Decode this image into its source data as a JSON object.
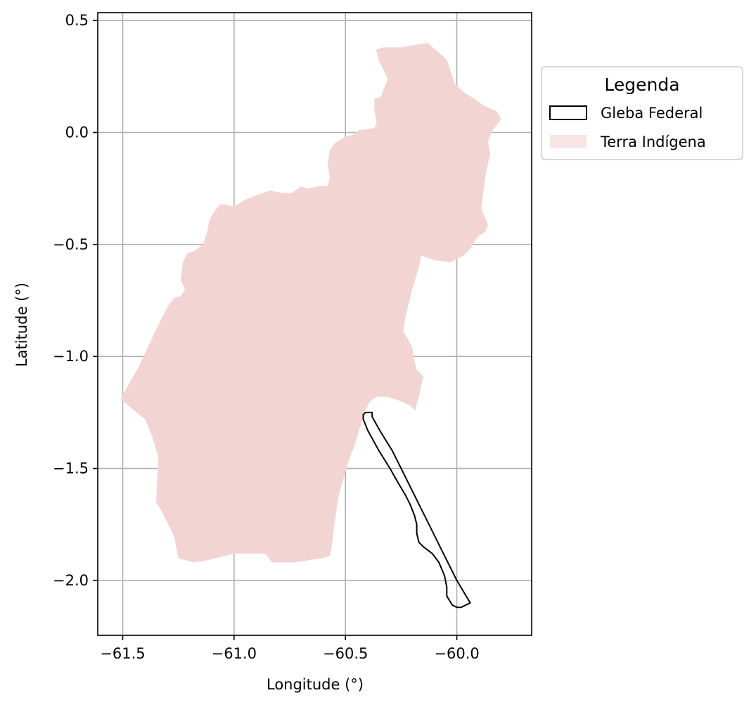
{
  "chart_data": {
    "type": "map",
    "xlabel": "Longitude (°)",
    "ylabel": "Latitude (°)",
    "xlim": [
      -61.612,
      -59.664
    ],
    "ylim": [
      -2.245,
      0.535
    ],
    "x_ticks": [
      -61.5,
      -61.0,
      -60.5,
      -60.0
    ],
    "x_tick_labels": [
      "−61.5",
      "−61.0",
      "−60.5",
      "−60.0"
    ],
    "y_ticks": [
      0.5,
      0.0,
      -0.5,
      -1.0,
      -1.5,
      -2.0
    ],
    "y_tick_labels": [
      "0.5",
      "0.0",
      "−0.5",
      "−1.0",
      "−1.5",
      "−2.0"
    ],
    "grid": true,
    "legend": {
      "title": "Legenda",
      "placement": "outside-right-top",
      "entries": [
        {
          "label": "Gleba Federal",
          "style": "outline",
          "color": "#000000"
        },
        {
          "label": "Terra Indígena",
          "style": "fill",
          "color": "#f2d4d3"
        }
      ]
    },
    "layers": [
      {
        "name": "Terra Indígena",
        "color": "#f2d4d3",
        "polygon": [
          [
            -60.362,
            0.37
          ],
          [
            -60.33,
            0.38
          ],
          [
            -60.25,
            0.38
          ],
          [
            -60.13,
            0.4
          ],
          [
            -60.045,
            0.325
          ],
          [
            -60.03,
            0.28
          ],
          [
            -60.01,
            0.22
          ],
          [
            -59.97,
            0.18
          ],
          [
            -59.92,
            0.15
          ],
          [
            -59.88,
            0.12
          ],
          [
            -59.822,
            0.095
          ],
          [
            -59.8,
            0.06
          ],
          [
            -59.84,
            0.01
          ],
          [
            -59.86,
            -0.04
          ],
          [
            -59.85,
            -0.1
          ],
          [
            -59.87,
            -0.18
          ],
          [
            -59.88,
            -0.26
          ],
          [
            -59.89,
            -0.34
          ],
          [
            -59.86,
            -0.41
          ],
          [
            -59.87,
            -0.44
          ],
          [
            -59.91,
            -0.47
          ],
          [
            -59.94,
            -0.52
          ],
          [
            -59.97,
            -0.55
          ],
          [
            -60.03,
            -0.58
          ],
          [
            -60.1,
            -0.57
          ],
          [
            -60.16,
            -0.55
          ],
          [
            -60.17,
            -0.6
          ],
          [
            -60.2,
            -0.7
          ],
          [
            -60.23,
            -0.82
          ],
          [
            -60.24,
            -0.89
          ],
          [
            -60.22,
            -0.92
          ],
          [
            -60.2,
            -0.96
          ],
          [
            -60.19,
            -1.02
          ],
          [
            -60.18,
            -1.06
          ],
          [
            -60.15,
            -1.09
          ],
          [
            -60.16,
            -1.13
          ],
          [
            -60.17,
            -1.18
          ],
          [
            -60.18,
            -1.21
          ],
          [
            -60.186,
            -1.242
          ],
          [
            -60.21,
            -1.22
          ],
          [
            -60.25,
            -1.2
          ],
          [
            -60.31,
            -1.18
          ],
          [
            -60.36,
            -1.18
          ],
          [
            -60.39,
            -1.2
          ],
          [
            -60.41,
            -1.24
          ],
          [
            -60.42,
            -1.27
          ],
          [
            -60.45,
            -1.37
          ],
          [
            -60.49,
            -1.48
          ],
          [
            -60.53,
            -1.62
          ],
          [
            -60.55,
            -1.75
          ],
          [
            -60.56,
            -1.84
          ],
          [
            -60.57,
            -1.89
          ],
          [
            -60.6,
            -1.9
          ],
          [
            -60.73,
            -1.92
          ],
          [
            -60.83,
            -1.92
          ],
          [
            -60.86,
            -1.88
          ],
          [
            -61.0,
            -1.88
          ],
          [
            -61.12,
            -1.91
          ],
          [
            -61.18,
            -1.92
          ],
          [
            -61.25,
            -1.9
          ],
          [
            -61.27,
            -1.8
          ],
          [
            -61.32,
            -1.7
          ],
          [
            -61.35,
            -1.65
          ],
          [
            -61.34,
            -1.45
          ],
          [
            -61.37,
            -1.35
          ],
          [
            -61.4,
            -1.28
          ],
          [
            -61.45,
            -1.24
          ],
          [
            -61.51,
            -1.19
          ],
          [
            -61.43,
            -1.05
          ],
          [
            -61.35,
            -0.88
          ],
          [
            -61.3,
            -0.78
          ],
          [
            -61.27,
            -0.74
          ],
          [
            -61.24,
            -0.73
          ],
          [
            -61.22,
            -0.7
          ],
          [
            -61.24,
            -0.66
          ],
          [
            -61.23,
            -0.58
          ],
          [
            -61.21,
            -0.54
          ],
          [
            -61.18,
            -0.53
          ],
          [
            -61.14,
            -0.5
          ],
          [
            -61.12,
            -0.44
          ],
          [
            -61.11,
            -0.39
          ],
          [
            -61.08,
            -0.34
          ],
          [
            -61.06,
            -0.32
          ],
          [
            -61.0,
            -0.33
          ],
          [
            -60.95,
            -0.3
          ],
          [
            -60.9,
            -0.28
          ],
          [
            -60.84,
            -0.26
          ],
          [
            -60.78,
            -0.27
          ],
          [
            -60.74,
            -0.27
          ],
          [
            -60.7,
            -0.24
          ],
          [
            -60.67,
            -0.25
          ],
          [
            -60.62,
            -0.24
          ],
          [
            -60.58,
            -0.24
          ],
          [
            -60.57,
            -0.2
          ],
          [
            -60.58,
            -0.14
          ],
          [
            -60.57,
            -0.08
          ],
          [
            -60.55,
            -0.05
          ],
          [
            -60.52,
            -0.03
          ],
          [
            -60.47,
            -0.01
          ],
          [
            -60.44,
            0.01
          ],
          [
            -60.37,
            0.02
          ],
          [
            -60.36,
            0.04
          ],
          [
            -60.37,
            0.1
          ],
          [
            -60.37,
            0.15
          ],
          [
            -60.34,
            0.16
          ],
          [
            -60.33,
            0.19
          ],
          [
            -60.31,
            0.24
          ],
          [
            -60.33,
            0.28
          ],
          [
            -60.35,
            0.32
          ]
        ]
      },
      {
        "name": "Gleba Federal",
        "color": "#000000",
        "polygon": [
          [
            -60.41,
            -1.25
          ],
          [
            -60.38,
            -1.25
          ],
          [
            -60.38,
            -1.27
          ],
          [
            -60.34,
            -1.34
          ],
          [
            -60.29,
            -1.42
          ],
          [
            -60.25,
            -1.5
          ],
          [
            -60.21,
            -1.58
          ],
          [
            -60.17,
            -1.66
          ],
          [
            -60.12,
            -1.76
          ],
          [
            -60.08,
            -1.84
          ],
          [
            -60.04,
            -1.92
          ],
          [
            -60.0,
            -2.0
          ],
          [
            -59.94,
            -2.1
          ],
          [
            -59.96,
            -2.11
          ],
          [
            -59.98,
            -2.12
          ],
          [
            -60.0,
            -2.12
          ],
          [
            -60.02,
            -2.11
          ],
          [
            -60.045,
            -2.07
          ],
          [
            -60.045,
            -2.03
          ],
          [
            -60.055,
            -1.98
          ],
          [
            -60.08,
            -1.92
          ],
          [
            -60.11,
            -1.88
          ],
          [
            -60.15,
            -1.85
          ],
          [
            -60.17,
            -1.83
          ],
          [
            -60.18,
            -1.79
          ],
          [
            -60.18,
            -1.75
          ],
          [
            -60.19,
            -1.71
          ],
          [
            -60.21,
            -1.66
          ],
          [
            -60.23,
            -1.62
          ],
          [
            -60.26,
            -1.57
          ],
          [
            -60.3,
            -1.5
          ],
          [
            -60.35,
            -1.42
          ],
          [
            -60.4,
            -1.33
          ],
          [
            -60.42,
            -1.28
          ],
          [
            -60.42,
            -1.26
          ]
        ]
      }
    ]
  }
}
